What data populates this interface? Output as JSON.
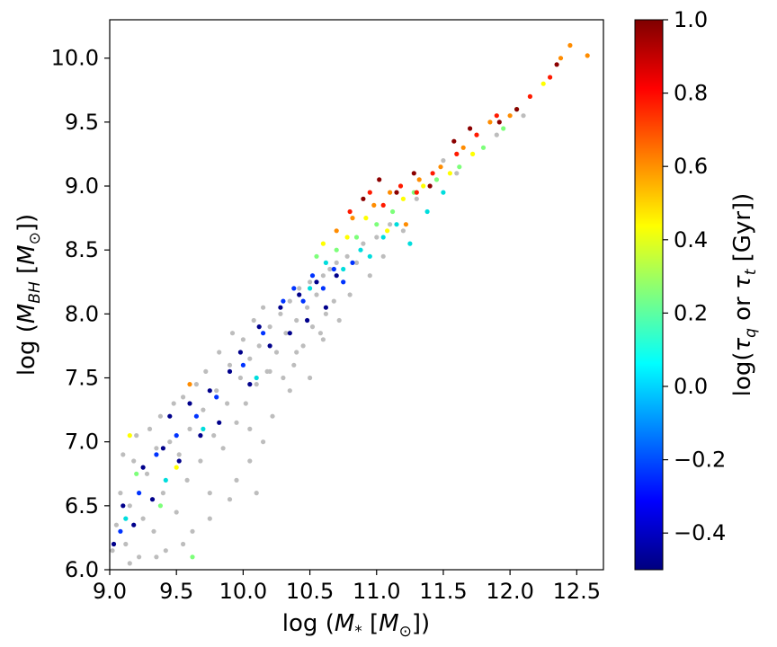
{
  "chart_data": {
    "type": "scatter",
    "xlabel": "log (M* [M⊙])",
    "ylabel": "log (M_BH [M⊙])",
    "xlim": [
      9.0,
      12.7
    ],
    "ylim": [
      6.0,
      10.3
    ],
    "x_ticks": [
      "9.0",
      "9.5",
      "10.0",
      "10.5",
      "11.0",
      "11.5",
      "12.0",
      "12.5"
    ],
    "y_ticks": [
      "6.0",
      "6.5",
      "7.0",
      "7.5",
      "8.0",
      "8.5",
      "9.0",
      "9.5",
      "10.0"
    ],
    "grid": false,
    "colorbar": {
      "label": "log(τ_q or τ_t [Gyr])",
      "range": [
        -0.5,
        1.0
      ],
      "ticks": [
        "−0.4",
        "−0.2",
        "0.0",
        "0.2",
        "0.4",
        "0.6",
        "0.8",
        "1.0"
      ],
      "colormap": "jet"
    },
    "series": [
      {
        "color": "#bdbdbd",
        "values": [
          [
            9.02,
            6.15
          ],
          [
            9.05,
            6.35
          ],
          [
            9.08,
            6.6
          ],
          [
            9.1,
            6.9
          ],
          [
            9.12,
            6.2
          ],
          [
            9.15,
            6.5
          ],
          [
            9.18,
            6.85
          ],
          [
            9.2,
            7.05
          ],
          [
            9.22,
            6.1
          ],
          [
            9.25,
            6.4
          ],
          [
            9.28,
            6.75
          ],
          [
            9.3,
            7.1
          ],
          [
            9.33,
            6.3
          ],
          [
            9.35,
            6.95
          ],
          [
            9.38,
            7.2
          ],
          [
            9.4,
            6.6
          ],
          [
            9.42,
            6.15
          ],
          [
            9.45,
            7.0
          ],
          [
            9.48,
            7.3
          ],
          [
            9.5,
            6.45
          ],
          [
            9.52,
            6.9
          ],
          [
            9.55,
            7.35
          ],
          [
            9.58,
            6.7
          ],
          [
            9.6,
            7.1
          ],
          [
            9.62,
            6.3
          ],
          [
            9.65,
            7.45
          ],
          [
            9.68,
            6.85
          ],
          [
            9.7,
            7.25
          ],
          [
            9.72,
            7.55
          ],
          [
            9.75,
            6.6
          ],
          [
            9.78,
            7.05
          ],
          [
            9.8,
            7.4
          ],
          [
            9.82,
            7.7
          ],
          [
            9.85,
            6.95
          ],
          [
            9.88,
            7.3
          ],
          [
            9.9,
            7.6
          ],
          [
            9.92,
            7.85
          ],
          [
            9.95,
            7.15
          ],
          [
            9.98,
            7.5
          ],
          [
            10.0,
            7.8
          ],
          [
            10.02,
            7.3
          ],
          [
            10.05,
            7.65
          ],
          [
            10.08,
            7.95
          ],
          [
            10.1,
            7.45
          ],
          [
            10.12,
            7.75
          ],
          [
            10.15,
            8.05
          ],
          [
            10.18,
            7.55
          ],
          [
            10.2,
            7.9
          ],
          [
            10.22,
            7.2
          ],
          [
            10.25,
            7.7
          ],
          [
            10.28,
            8.0
          ],
          [
            10.3,
            7.5
          ],
          [
            10.32,
            7.85
          ],
          [
            10.35,
            8.1
          ],
          [
            10.38,
            7.6
          ],
          [
            10.4,
            7.95
          ],
          [
            10.42,
            8.2
          ],
          [
            10.45,
            7.75
          ],
          [
            10.48,
            8.05
          ],
          [
            10.5,
            8.25
          ],
          [
            10.52,
            7.9
          ],
          [
            10.55,
            8.15
          ],
          [
            10.58,
            7.85
          ],
          [
            10.6,
            8.3
          ],
          [
            10.62,
            8.0
          ],
          [
            10.65,
            8.35
          ],
          [
            10.68,
            8.1
          ],
          [
            10.7,
            8.4
          ],
          [
            10.72,
            7.95
          ],
          [
            10.75,
            8.25
          ],
          [
            10.78,
            8.45
          ],
          [
            10.8,
            8.15
          ],
          [
            10.85,
            8.4
          ],
          [
            10.9,
            8.55
          ],
          [
            10.95,
            8.3
          ],
          [
            11.0,
            8.6
          ],
          [
            11.05,
            8.45
          ],
          [
            11.1,
            8.7
          ],
          [
            11.2,
            8.65
          ],
          [
            11.3,
            8.9
          ],
          [
            9.15,
            6.05
          ],
          [
            9.35,
            6.1
          ],
          [
            9.55,
            6.2
          ],
          [
            9.75,
            6.4
          ],
          [
            9.95,
            6.7
          ],
          [
            10.05,
            6.85
          ],
          [
            10.15,
            7.0
          ],
          [
            10.35,
            7.4
          ],
          [
            10.05,
            7.1
          ],
          [
            10.1,
            6.6
          ],
          [
            9.9,
            6.55
          ],
          [
            10.2,
            7.55
          ],
          [
            10.4,
            7.7
          ],
          [
            10.6,
            7.8
          ],
          [
            10.5,
            7.5
          ],
          [
            11.5,
            9.2
          ],
          [
            11.6,
            9.1
          ],
          [
            11.9,
            9.4
          ],
          [
            12.1,
            9.55
          ]
        ]
      },
      {
        "color": "#00008b",
        "values": [
          [
            9.03,
            6.2
          ],
          [
            9.1,
            6.5
          ],
          [
            9.18,
            6.35
          ],
          [
            9.25,
            6.8
          ],
          [
            9.32,
            6.55
          ],
          [
            9.4,
            6.95
          ],
          [
            9.45,
            7.2
          ],
          [
            9.52,
            6.85
          ],
          [
            9.6,
            7.3
          ],
          [
            9.68,
            7.05
          ],
          [
            9.75,
            7.4
          ],
          [
            9.82,
            7.15
          ],
          [
            9.9,
            7.55
          ],
          [
            9.98,
            7.7
          ],
          [
            10.05,
            7.45
          ],
          [
            10.12,
            7.9
          ],
          [
            10.2,
            7.75
          ],
          [
            10.28,
            8.05
          ],
          [
            10.35,
            7.85
          ],
          [
            10.42,
            8.15
          ],
          [
            10.48,
            7.95
          ],
          [
            10.55,
            8.25
          ],
          [
            10.62,
            8.05
          ],
          [
            10.7,
            8.3
          ]
        ]
      },
      {
        "color": "#0033ff",
        "values": [
          [
            9.08,
            6.3
          ],
          [
            9.22,
            6.6
          ],
          [
            9.35,
            6.9
          ],
          [
            9.5,
            7.05
          ],
          [
            9.65,
            7.2
          ],
          [
            9.8,
            7.35
          ],
          [
            10.0,
            7.6
          ],
          [
            10.15,
            7.85
          ],
          [
            10.3,
            8.1
          ],
          [
            10.38,
            8.2
          ],
          [
            10.45,
            8.1
          ],
          [
            10.52,
            8.3
          ],
          [
            10.6,
            8.2
          ],
          [
            10.68,
            8.35
          ],
          [
            10.75,
            8.25
          ],
          [
            10.82,
            8.4
          ]
        ]
      },
      {
        "color": "#00dddd",
        "values": [
          [
            9.12,
            6.4
          ],
          [
            9.42,
            6.7
          ],
          [
            9.7,
            7.1
          ],
          [
            10.1,
            7.5
          ],
          [
            10.5,
            8.2
          ],
          [
            10.62,
            8.4
          ],
          [
            10.75,
            8.35
          ],
          [
            10.88,
            8.5
          ],
          [
            10.95,
            8.45
          ],
          [
            11.05,
            8.6
          ],
          [
            11.15,
            8.7
          ],
          [
            11.25,
            8.55
          ],
          [
            11.38,
            8.8
          ],
          [
            11.5,
            8.95
          ]
        ]
      },
      {
        "color": "#7dff7a",
        "values": [
          [
            9.2,
            6.75
          ],
          [
            9.38,
            6.5
          ],
          [
            9.62,
            6.1
          ],
          [
            10.55,
            8.45
          ],
          [
            10.7,
            8.5
          ],
          [
            10.85,
            8.6
          ],
          [
            11.0,
            8.7
          ],
          [
            11.12,
            8.8
          ],
          [
            11.28,
            8.95
          ],
          [
            11.45,
            9.05
          ],
          [
            11.62,
            9.15
          ],
          [
            11.8,
            9.3
          ],
          [
            11.95,
            9.45
          ],
          [
            12.05,
            9.6
          ]
        ]
      },
      {
        "color": "#ffff00",
        "values": [
          [
            9.15,
            7.05
          ],
          [
            9.5,
            6.8
          ],
          [
            10.6,
            8.55
          ],
          [
            10.78,
            8.6
          ],
          [
            10.92,
            8.75
          ],
          [
            11.08,
            8.65
          ],
          [
            11.2,
            8.9
          ],
          [
            11.35,
            9.0
          ],
          [
            11.55,
            9.1
          ],
          [
            11.72,
            9.25
          ],
          [
            12.25,
            9.8
          ]
        ]
      },
      {
        "color": "#ff8c00",
        "values": [
          [
            9.6,
            7.45
          ],
          [
            10.7,
            8.65
          ],
          [
            10.82,
            8.75
          ],
          [
            10.98,
            8.85
          ],
          [
            11.1,
            8.95
          ],
          [
            11.22,
            8.7
          ],
          [
            11.32,
            9.05
          ],
          [
            11.48,
            9.15
          ],
          [
            11.65,
            9.3
          ],
          [
            11.85,
            9.5
          ],
          [
            12.0,
            9.55
          ],
          [
            12.38,
            10.0
          ],
          [
            12.45,
            10.1
          ],
          [
            12.58,
            10.02
          ]
        ]
      },
      {
        "color": "#ff1a00",
        "values": [
          [
            10.8,
            8.8
          ],
          [
            10.95,
            8.95
          ],
          [
            11.05,
            8.85
          ],
          [
            11.18,
            9.0
          ],
          [
            11.3,
            8.95
          ],
          [
            11.42,
            9.1
          ],
          [
            11.6,
            9.25
          ],
          [
            11.75,
            9.4
          ],
          [
            11.9,
            9.55
          ],
          [
            12.15,
            9.7
          ],
          [
            12.3,
            9.85
          ]
        ]
      },
      {
        "color": "#8b0000",
        "values": [
          [
            10.9,
            8.9
          ],
          [
            11.02,
            9.05
          ],
          [
            11.15,
            8.95
          ],
          [
            11.28,
            9.1
          ],
          [
            11.4,
            9.0
          ],
          [
            11.58,
            9.35
          ],
          [
            11.7,
            9.45
          ],
          [
            11.92,
            9.5
          ],
          [
            12.05,
            9.6
          ],
          [
            12.35,
            9.95
          ]
        ]
      }
    ]
  }
}
